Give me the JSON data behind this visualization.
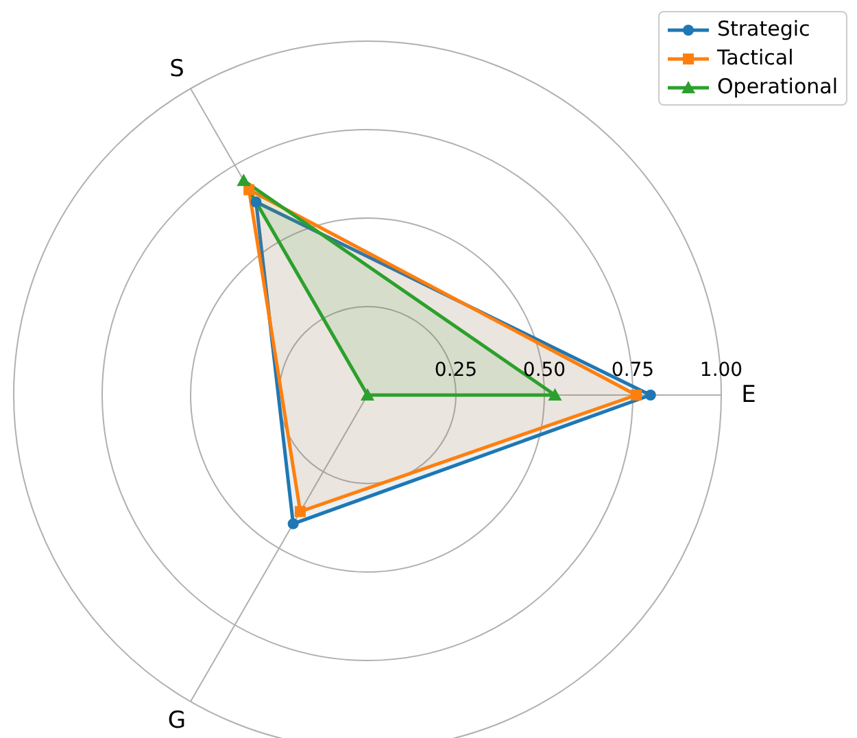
{
  "chart_data": {
    "type": "radar",
    "categories": [
      "E",
      "G",
      "S"
    ],
    "series": [
      {
        "name": "Strategic",
        "color": "#1f77b4",
        "marker": "circle",
        "values": [
          0.8,
          0.42,
          0.63
        ]
      },
      {
        "name": "Tactical",
        "color": "#ff7f0e",
        "marker": "square",
        "values": [
          0.76,
          0.38,
          0.67
        ]
      },
      {
        "name": "Operational",
        "color": "#2ca02c",
        "marker": "triangle",
        "values": [
          0.53,
          0,
          0.7
        ]
      }
    ],
    "ylim": [
      0,
      1
    ],
    "yticks": [
      {
        "value": 0.25,
        "label": "0.25"
      },
      {
        "value": 0.5,
        "label": "0.50"
      },
      {
        "value": 0.75,
        "label": "0.75"
      },
      {
        "value": 1,
        "label": "1.00"
      }
    ],
    "grid": true,
    "legend": "top right"
  }
}
